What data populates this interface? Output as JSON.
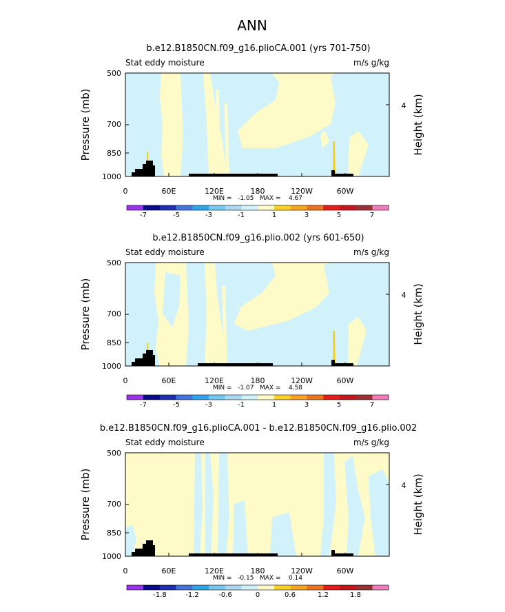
{
  "page_title": "ANN",
  "chart_data": [
    {
      "type": "heatmap",
      "title": "b.e12.B1850CN.f09_g16.plioCA.001 (yrs 701-750)",
      "left_label": "Stat eddy moisture",
      "right_label": "m/s g/kg",
      "ylabel": "Pressure (mb)",
      "ylabel_right": "Height (km)",
      "y_ticks": [
        "500",
        "700",
        "850",
        "1000"
      ],
      "y_right_ticks": [
        "4"
      ],
      "x_ticks": [
        "0",
        "60E",
        "120E",
        "180",
        "120W",
        "60W"
      ],
      "min_text": "MIN =   -1.05   MAX =    4.67",
      "colorbar_labels": [
        "-7",
        "-5",
        "-3",
        "-1",
        "1",
        "3",
        "5",
        "7"
      ]
    },
    {
      "type": "heatmap",
      "title": "b.e12.B1850CN.f09_g16.plio.002 (yrs 601-650)",
      "left_label": "Stat eddy moisture",
      "right_label": "m/s g/kg",
      "ylabel": "Pressure (mb)",
      "ylabel_right": "Height (km)",
      "y_ticks": [
        "500",
        "700",
        "850",
        "1000"
      ],
      "y_right_ticks": [
        "4"
      ],
      "x_ticks": [
        "0",
        "60E",
        "120E",
        "180",
        "120W",
        "60W"
      ],
      "min_text": "MIN =   -1.07   MAX =    4.58",
      "colorbar_labels": [
        "-7",
        "-5",
        "-3",
        "-1",
        "1",
        "3",
        "5",
        "7"
      ]
    },
    {
      "type": "heatmap",
      "title": "b.e12.B1850CN.f09_g16.plioCA.001 - b.e12.B1850CN.f09_g16.plio.002",
      "left_label": "Stat eddy moisture",
      "right_label": "m/s g/kg",
      "ylabel": "Pressure (mb)",
      "ylabel_right": "Height (km)",
      "y_ticks": [
        "500",
        "700",
        "850",
        "1000"
      ],
      "y_right_ticks": [
        "4"
      ],
      "x_ticks": [
        "0",
        "60E",
        "120E",
        "180",
        "120W",
        "60W"
      ],
      "min_text": "MIN =   -0.15   MAX =    0.14",
      "colorbar_labels": [
        "-1.8",
        "-1.2",
        "-0.6",
        "0",
        "0.6",
        "1.2",
        "1.8"
      ]
    }
  ],
  "colors": {
    "positive_fill": "#fffbc8",
    "negative_fill": "#d2f2fb",
    "topography": "#000000",
    "colorbar": [
      "#9933ee",
      "#0a0a8c",
      "#1f2fb4",
      "#4473d9",
      "#30a6e8",
      "#77c7f0",
      "#a9d9f3",
      "#d2f2fb",
      "#fffbc8",
      "#fad227",
      "#f6a51f",
      "#ee7422",
      "#e51c1b",
      "#c4161c",
      "#993333",
      "#f27dbd"
    ]
  }
}
